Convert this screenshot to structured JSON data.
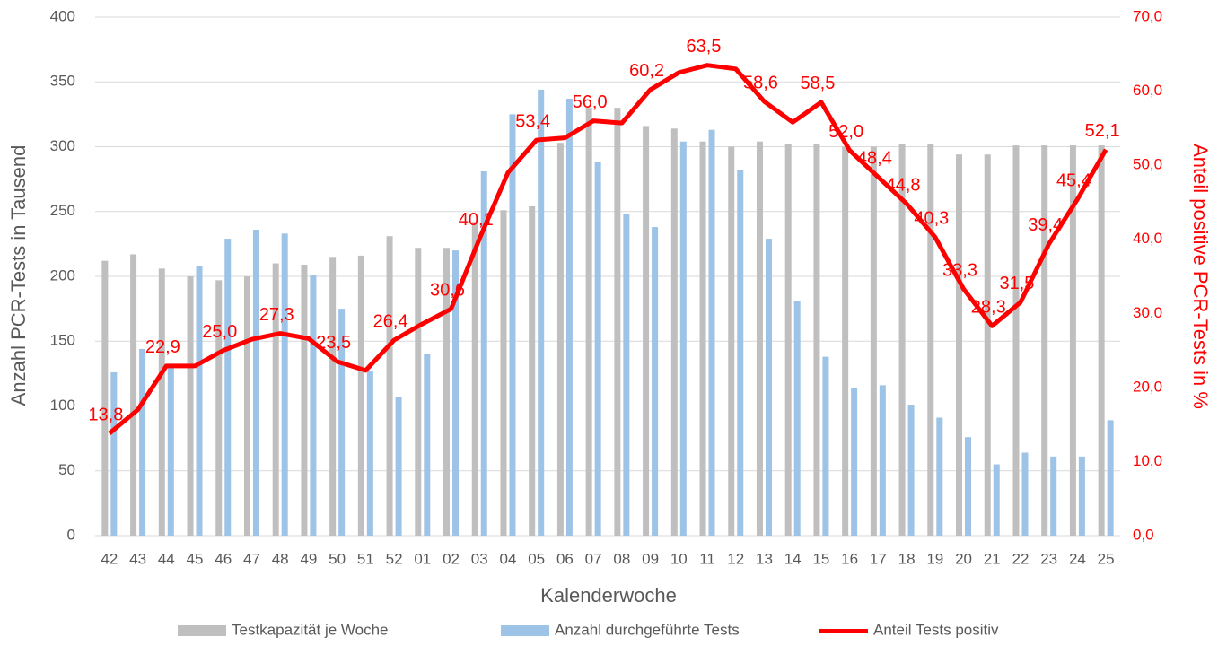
{
  "chart_data": {
    "type": "bar-line",
    "categories": [
      "42",
      "43",
      "44",
      "45",
      "46",
      "47",
      "48",
      "49",
      "50",
      "51",
      "52",
      "01",
      "02",
      "03",
      "04",
      "05",
      "06",
      "07",
      "08",
      "09",
      "10",
      "11",
      "12",
      "13",
      "14",
      "15",
      "16",
      "17",
      "18",
      "19",
      "20",
      "21",
      "22",
      "23",
      "24",
      "25"
    ],
    "xlabel": "Kalenderwoche",
    "ylabel": "Anzahl PCR-Tests in Tausend",
    "y2label": "Anteil positive PCR-Tests in %",
    "ylim": [
      0,
      400
    ],
    "yticks": [
      0,
      50,
      100,
      150,
      200,
      250,
      300,
      350,
      400
    ],
    "y2lim": [
      0,
      70
    ],
    "y2ticks": [
      {
        "value": 0,
        "label": "0,0"
      },
      {
        "value": 10,
        "label": "10,0"
      },
      {
        "value": 20,
        "label": "20,0"
      },
      {
        "value": 30,
        "label": "30,0"
      },
      {
        "value": 40,
        "label": "40,0"
      },
      {
        "value": 50,
        "label": "50,0"
      },
      {
        "value": 60,
        "label": "60,0"
      },
      {
        "value": 70,
        "label": "70,0"
      }
    ],
    "grid": true,
    "legend": "bottom",
    "series": [
      {
        "name": "Testkapazität je Woche",
        "color": "#bfbfbf",
        "type": "bar",
        "values": [
          212,
          217,
          206,
          200,
          197,
          200,
          210,
          209,
          215,
          216,
          231,
          222,
          222,
          242,
          251,
          254,
          303,
          330,
          330,
          316,
          314,
          304,
          300,
          304,
          302,
          302,
          300,
          300,
          302,
          302,
          294,
          294,
          301,
          301,
          301,
          301
        ]
      },
      {
        "name": "Anzahl durchgeführte Tests",
        "color": "#9dc3e6",
        "type": "bar",
        "values": [
          126,
          144,
          130,
          208,
          229,
          236,
          233,
          201,
          175,
          127,
          107,
          140,
          220,
          281,
          325,
          344,
          337,
          288,
          248,
          238,
          304,
          313,
          282,
          229,
          181,
          138,
          114,
          116,
          101,
          91,
          76,
          55,
          64,
          61,
          61,
          89
        ]
      },
      {
        "name": "Anteil Tests positiv",
        "color": "#ff0000",
        "type": "line",
        "axis": "y2",
        "values": [
          13.8,
          17.0,
          22.9,
          22.9,
          25.0,
          26.5,
          27.3,
          26.6,
          23.5,
          22.3,
          26.4,
          28.6,
          30.6,
          40.1,
          49.0,
          53.4,
          53.7,
          56.0,
          55.7,
          60.2,
          62.5,
          63.5,
          63.0,
          58.6,
          55.8,
          58.5,
          52.0,
          48.4,
          44.8,
          40.3,
          33.3,
          28.3,
          31.5,
          39.4,
          45.4,
          52.1
        ],
        "value_labels": [
          "13,8",
          null,
          "22,9",
          null,
          "25,0",
          null,
          "27,3",
          null,
          "23,5",
          null,
          "26,4",
          null,
          "30,6",
          "40,1",
          null,
          "53,4",
          null,
          "56,0",
          null,
          "60,2",
          null,
          "63,5",
          null,
          "58,6",
          null,
          "58,5",
          "52,0",
          "48,4",
          "44,8",
          "40,3",
          "33,3",
          "28,3",
          "31,5",
          "39,4",
          "45,4",
          "52,1"
        ]
      }
    ]
  }
}
